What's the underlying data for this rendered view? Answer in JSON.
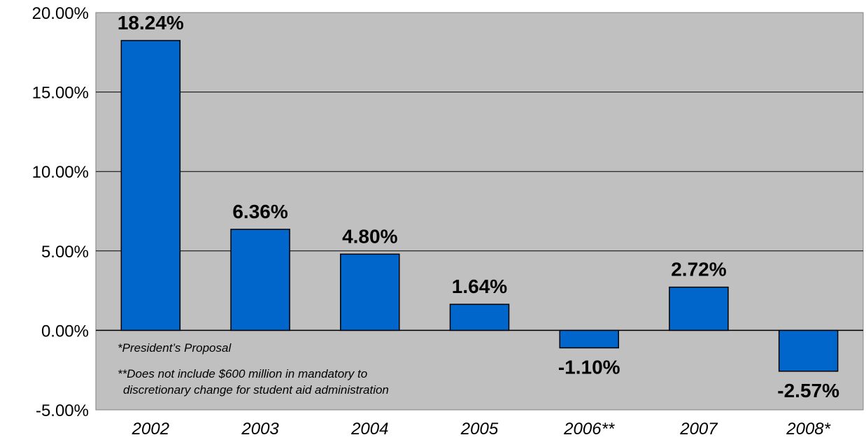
{
  "chart_data": {
    "type": "bar",
    "categories": [
      "2002",
      "2003",
      "2004",
      "2005",
      "2006**",
      "2007",
      "2008*"
    ],
    "values": [
      18.24,
      6.36,
      4.8,
      1.64,
      -1.1,
      2.72,
      -2.57
    ],
    "value_labels": [
      "18.24%",
      "6.36%",
      "4.80%",
      "1.64%",
      "-1.10%",
      "2.72%",
      "-2.57%"
    ],
    "y_ticks": [
      {
        "value": 20,
        "label": "20.00%"
      },
      {
        "value": 15,
        "label": "15.00%"
      },
      {
        "value": 10,
        "label": "10.00%"
      },
      {
        "value": 5,
        "label": "5.00%"
      },
      {
        "value": 0,
        "label": "0.00%"
      },
      {
        "value": -5,
        "label": "-5.00%"
      }
    ],
    "ylim": [
      -5,
      20
    ],
    "grid": true,
    "title": "",
    "xlabel": "",
    "ylabel": "",
    "colors": {
      "bar": "#0066cc",
      "plot_background": "#c0c0c0",
      "gridline": "#000000"
    }
  },
  "notes": {
    "line1": "*President’s Proposal",
    "line2": "**Does not include $600 million in mandatory to",
    "line3": "discretionary change for student aid administration"
  }
}
